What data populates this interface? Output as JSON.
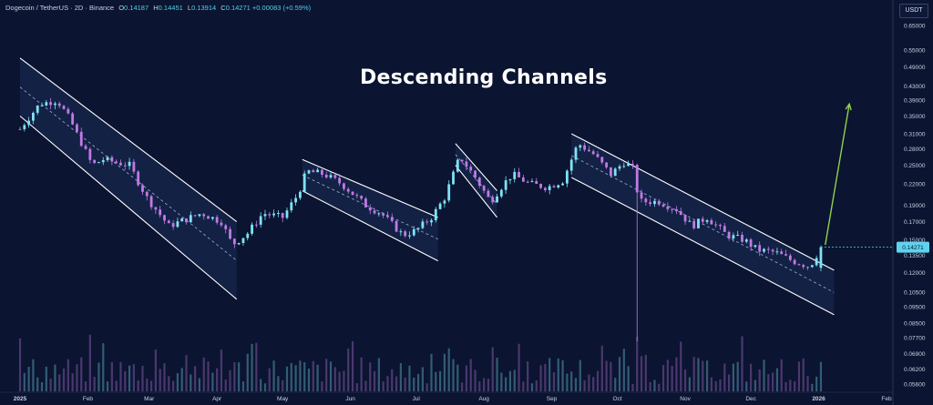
{
  "header": {
    "pair": "Dogecoin / TetherUS · 2D · Binance",
    "o_label": "O",
    "o": "0.14187",
    "h_label": "H",
    "h": "0.14451",
    "l_label": "L",
    "l": "0.13914",
    "c_label": "C",
    "c": "0.14271",
    "change": "+0.00083 (+0.59%)"
  },
  "currency_button": "USDT",
  "annotation_title": "Descending Channels",
  "colors": {
    "background": "#0b1430",
    "up": "#7fe3f5",
    "down": "#c07ae6",
    "channel_line": "#ffffff",
    "channel_fill": "#1b2b55",
    "arrow": "#8fd44b",
    "price_tag": "#5fd3ee"
  },
  "chart_data": {
    "type": "candlestick",
    "y_scale": "log",
    "y_ticks": [
      "0.65000",
      "0.55000",
      "0.49000",
      "0.43000",
      "0.39000",
      "0.35000",
      "0.31000",
      "0.28000",
      "0.25000",
      "0.22000",
      "0.19000",
      "0.17000",
      "0.15000",
      "0.13500",
      "0.12000",
      "0.10500",
      "0.09500",
      "0.08500",
      "0.07700",
      "0.06900",
      "0.06200",
      "0.05600"
    ],
    "x_ticks": [
      "2025",
      "Feb",
      "Mar",
      "Apr",
      "May",
      "Jun",
      "Jul",
      "Aug",
      "Sep",
      "Oct",
      "Nov",
      "Dec",
      "2026",
      "Feb"
    ],
    "last_price": "0.14271",
    "keypoints": [
      [
        "2025-01-01",
        0.32
      ],
      [
        "2025-01-04",
        0.34
      ],
      [
        "2025-01-10",
        0.38
      ],
      [
        "2025-01-18",
        0.39
      ],
      [
        "2025-01-24",
        0.34
      ],
      [
        "2025-02-03",
        0.25
      ],
      [
        "2025-02-08",
        0.26
      ],
      [
        "2025-02-20",
        0.25
      ],
      [
        "2025-02-28",
        0.2
      ],
      [
        "2025-03-10",
        0.165
      ],
      [
        "2025-03-15",
        0.17
      ],
      [
        "2025-03-25",
        0.18
      ],
      [
        "2025-04-03",
        0.17
      ],
      [
        "2025-04-08",
        0.145
      ],
      [
        "2025-04-15",
        0.157
      ],
      [
        "2025-04-22",
        0.18
      ],
      [
        "2025-05-01",
        0.175
      ],
      [
        "2025-05-08",
        0.205
      ],
      [
        "2025-05-12",
        0.24
      ],
      [
        "2025-05-20",
        0.235
      ],
      [
        "2025-05-28",
        0.22
      ],
      [
        "2025-06-08",
        0.19
      ],
      [
        "2025-06-15",
        0.18
      ],
      [
        "2025-06-25",
        0.155
      ],
      [
        "2025-07-01",
        0.16
      ],
      [
        "2025-07-08",
        0.175
      ],
      [
        "2025-07-14",
        0.2
      ],
      [
        "2025-07-21",
        0.265
      ],
      [
        "2025-07-28",
        0.23
      ],
      [
        "2025-08-04",
        0.195
      ],
      [
        "2025-08-10",
        0.22
      ],
      [
        "2025-08-14",
        0.235
      ],
      [
        "2025-08-22",
        0.22
      ],
      [
        "2025-08-30",
        0.215
      ],
      [
        "2025-09-06",
        0.225
      ],
      [
        "2025-09-13",
        0.29
      ],
      [
        "2025-09-20",
        0.27
      ],
      [
        "2025-09-28",
        0.235
      ],
      [
        "2025-10-04",
        0.255
      ],
      [
        "2025-10-08",
        0.245
      ],
      [
        "2025-10-11",
        0.195
      ],
      [
        "2025-10-20",
        0.195
      ],
      [
        "2025-10-28",
        0.185
      ],
      [
        "2025-11-04",
        0.165
      ],
      [
        "2025-11-11",
        0.175
      ],
      [
        "2025-11-20",
        0.155
      ],
      [
        "2025-11-28",
        0.15
      ],
      [
        "2025-12-04",
        0.14
      ],
      [
        "2025-12-12",
        0.138
      ],
      [
        "2025-12-20",
        0.13
      ],
      [
        "2025-12-28",
        0.125
      ],
      [
        "2026-01-02",
        0.14271
      ]
    ],
    "channels": [
      {
        "upper": [
          [
            "2025-01-01",
            0.52
          ],
          [
            "2025-04-10",
            0.17
          ]
        ],
        "lower": [
          [
            "2025-01-01",
            0.35
          ],
          [
            "2025-04-10",
            0.1
          ]
        ]
      },
      {
        "upper": [
          [
            "2025-05-10",
            0.26
          ],
          [
            "2025-07-11",
            0.175
          ]
        ],
        "lower": [
          [
            "2025-05-10",
            0.21
          ],
          [
            "2025-07-11",
            0.13
          ]
        ]
      },
      {
        "upper": [
          [
            "2025-07-19",
            0.29
          ],
          [
            "2025-08-07",
            0.21
          ]
        ],
        "lower": [
          [
            "2025-07-19",
            0.25
          ],
          [
            "2025-08-07",
            0.175
          ]
        ]
      },
      {
        "upper": [
          [
            "2025-09-10",
            0.31
          ],
          [
            "2026-01-08",
            0.122
          ]
        ],
        "lower": [
          [
            "2025-09-10",
            0.23
          ],
          [
            "2026-01-08",
            0.09
          ]
        ]
      }
    ],
    "projection_arrow": [
      [
        "2026-01-04",
        0.145
      ],
      [
        "2026-01-15",
        0.38
      ]
    ]
  }
}
